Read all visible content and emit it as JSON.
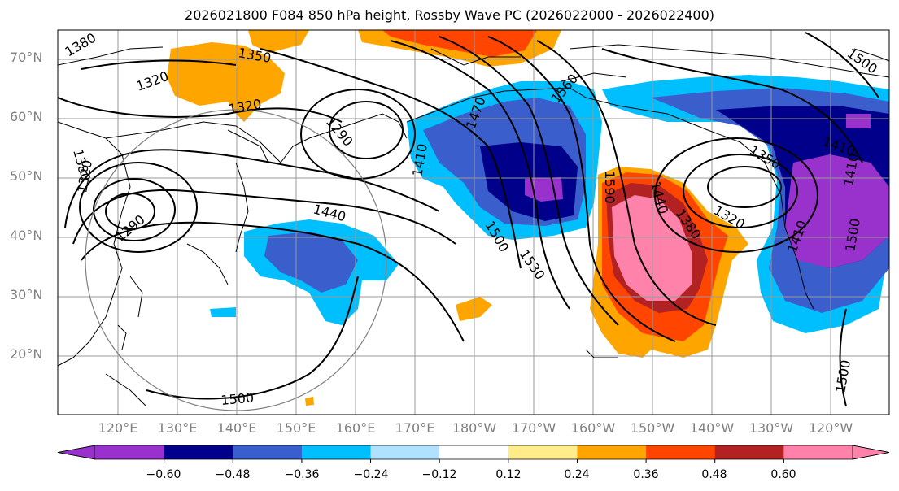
{
  "title": "2026021800 F084 850 hPa height, Rossby Wave PC (2026022000 - 2026022400)",
  "lat_labels": [
    "70°N",
    "60°N",
    "50°N",
    "40°N",
    "30°N",
    "20°N"
  ],
  "lon_labels": [
    "120°E",
    "130°E",
    "140°E",
    "150°E",
    "160°E",
    "170°E",
    "180°W",
    "170°W",
    "160°W",
    "150°W",
    "140°W",
    "130°W",
    "120°W"
  ],
  "colorbar": {
    "labels": [
      "−0.60",
      "−0.48",
      "−0.36",
      "−0.24",
      "−0.12",
      "0.12",
      "0.24",
      "0.36",
      "0.48",
      "0.60"
    ],
    "colors": [
      "#9932cc",
      "#00008b",
      "#3a5fcd",
      "#00bfff",
      "#b0e2ff",
      "#ffffff",
      "#ffec8b",
      "#ffa500",
      "#ff4500",
      "#b22222",
      "#ff82ab"
    ]
  },
  "contour_labels": [
    "1380",
    "1350",
    "1320",
    "1320",
    "1290",
    "1380",
    "1320",
    "1290",
    "1440",
    "1410",
    "1470",
    "1560",
    "1500",
    "1530",
    "1590",
    "1440",
    "1380",
    "1320",
    "1350",
    "1410",
    "1500",
    "1410",
    "1410",
    "1500",
    "1500"
  ]
}
